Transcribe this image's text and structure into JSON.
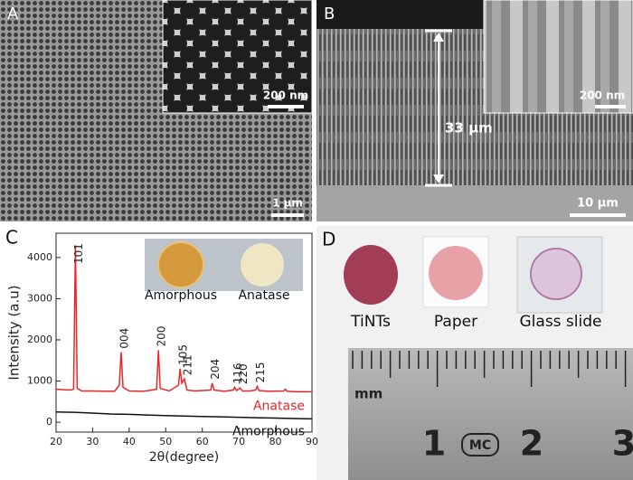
{
  "panels": {
    "A": {
      "label": "A",
      "inset_scale": "200 nm",
      "scale": "1 μm"
    },
    "B": {
      "label": "B",
      "inset_scale": "200 nm",
      "thickness": "33 μm",
      "scale": "10 μm"
    },
    "C": {
      "label": "C"
    },
    "D": {
      "label": "D",
      "samples": [
        "TiNTs",
        "Paper",
        "Glass slide"
      ],
      "ruler_unit": "mm",
      "ruler_numbers": [
        "1",
        "2",
        "3"
      ],
      "ruler_brand": "MC"
    }
  },
  "chart_data": {
    "type": "line",
    "xlabel": "2θ(degree)",
    "ylabel": "Intensity (a.u)",
    "xlim": [
      20,
      90
    ],
    "ylim": [
      -240,
      4590
    ],
    "xticks": [
      20,
      30,
      40,
      50,
      60,
      70,
      80,
      90
    ],
    "yticks": [
      0,
      1000,
      2000,
      3000,
      4000
    ],
    "inset_labels": [
      "Amorphous",
      "Anatase"
    ],
    "peak_labels": [
      {
        "label": "101",
        "x": 25.3
      },
      {
        "label": "004",
        "x": 37.8
      },
      {
        "label": "200",
        "x": 48
      },
      {
        "label": "105",
        "x": 53.9
      },
      {
        "label": "211",
        "x": 55.1
      },
      {
        "label": "204",
        "x": 62.7
      },
      {
        "label": "116",
        "x": 68.8
      },
      {
        "label": "220",
        "x": 70.3
      },
      {
        "label": "215",
        "x": 75
      }
    ],
    "series": [
      {
        "name": "Anatase",
        "color": "#e8262b",
        "x": [
          20,
          22,
          24,
          24.8,
          25.3,
          25.8,
          27,
          30,
          33,
          36,
          37.3,
          37.8,
          38.3,
          40,
          44,
          47.5,
          48,
          48.5,
          51,
          53.5,
          53.9,
          54.4,
          55.1,
          55.8,
          58,
          62.3,
          62.7,
          63.2,
          66,
          68.5,
          68.8,
          69.4,
          70.3,
          71,
          73,
          74.6,
          75,
          75.5,
          78,
          82.3,
          82.7,
          83.2,
          86,
          90
        ],
        "values": [
          800,
          790,
          780,
          800,
          4300,
          820,
          760,
          760,
          755,
          750,
          900,
          1700,
          850,
          760,
          750,
          800,
          1750,
          820,
          760,
          900,
          1300,
          950,
          1050,
          780,
          760,
          780,
          950,
          780,
          750,
          780,
          850,
          770,
          830,
          760,
          760,
          780,
          870,
          770,
          750,
          760,
          800,
          750,
          740,
          740
        ]
      },
      {
        "name": "Amorphous",
        "color": "#111111",
        "x": [
          20,
          25,
          30,
          35,
          40,
          45,
          50,
          55,
          60,
          65,
          70,
          75,
          80,
          85,
          90
        ],
        "values": [
          250,
          240,
          220,
          200,
          190,
          175,
          160,
          150,
          140,
          130,
          120,
          110,
          100,
          90,
          80
        ]
      }
    ]
  }
}
